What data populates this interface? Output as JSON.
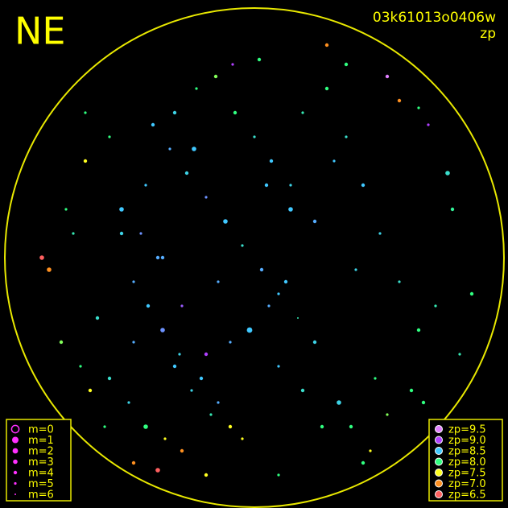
{
  "header": {
    "title": "NE",
    "id": "03k61013o0406w",
    "mode": "zp"
  },
  "magnitude_legend": [
    {
      "value": 0,
      "label": "m=0"
    },
    {
      "value": 1,
      "label": "m=1"
    },
    {
      "value": 2,
      "label": "m=2"
    },
    {
      "value": 3,
      "label": "m=3"
    },
    {
      "value": 4,
      "label": "m=4"
    },
    {
      "value": 5,
      "label": "m=5"
    },
    {
      "value": 6,
      "label": "m=6"
    }
  ],
  "zp_legend": [
    {
      "value": 9.5,
      "label": "zp=9.5",
      "color": "#e080ff"
    },
    {
      "value": 9.0,
      "label": "zp=9.0",
      "color": "#b040ff"
    },
    {
      "value": 8.5,
      "label": "zp=8.5",
      "color": "#40c8ff"
    },
    {
      "value": 8.0,
      "label": "zp=8.0",
      "color": "#30ff80"
    },
    {
      "value": 7.5,
      "label": "zp=7.5",
      "color": "#ffff20"
    },
    {
      "value": 7.0,
      "label": "zp=7.0",
      "color": "#ff9020"
    },
    {
      "value": 6.5,
      "label": "zp=6.5",
      "color": "#ff6060"
    }
  ],
  "points": {
    "x": [
      -0.42,
      -0.35,
      -0.28,
      -0.2,
      -0.12,
      -0.05,
      0.03,
      0.1,
      0.18,
      0.25,
      -0.5,
      -0.44,
      -0.38,
      -0.31,
      -0.22,
      -0.15,
      -0.08,
      0.0,
      0.07,
      0.15,
      -0.55,
      -0.47,
      -0.4,
      -0.33,
      -0.26,
      -0.18,
      -0.1,
      -0.02,
      0.06,
      0.13,
      -0.6,
      -0.52,
      -0.45,
      -0.37,
      -0.3,
      -0.24,
      -0.16,
      -0.09,
      0.02,
      0.2,
      0.3,
      0.38,
      0.45,
      0.52,
      0.6,
      0.68,
      0.75,
      0.82,
      0.35,
      0.5,
      -0.7,
      -0.78,
      -0.85,
      -0.65,
      -0.72,
      -0.8,
      -0.6,
      -0.68,
      -0.75,
      -0.88,
      0.4,
      0.55,
      0.65,
      0.72,
      0.8,
      0.6,
      0.48,
      0.7,
      0.85,
      0.9,
      -0.45,
      -0.38,
      -0.3,
      -0.25,
      -0.55,
      -0.5,
      -0.2,
      0.1,
      0.25,
      0.42,
      0.05,
      -0.1,
      0.2,
      0.33,
      -0.33,
      0.15,
      -0.05,
      0.28,
      -0.15,
      0.38,
      -0.62,
      -0.5,
      -0.4,
      0.55,
      0.68,
      -0.2,
      0.1,
      0.45,
      -0.7,
      0.3
    ],
    "y": [
      -0.55,
      -0.45,
      -0.35,
      -0.25,
      -0.15,
      -0.05,
      0.05,
      0.15,
      0.25,
      0.35,
      0.1,
      0.2,
      0.3,
      0.4,
      0.5,
      0.6,
      -0.6,
      -0.5,
      -0.4,
      -0.3,
      -0.2,
      -0.1,
      0.0,
      0.45,
      0.55,
      0.65,
      0.7,
      0.3,
      0.2,
      0.1,
      0.5,
      0.6,
      0.7,
      0.75,
      0.8,
      -0.7,
      -0.75,
      -0.8,
      -0.82,
      -0.6,
      -0.7,
      -0.5,
      -0.3,
      -0.1,
      0.1,
      0.3,
      0.2,
      -0.2,
      0.6,
      0.5,
      -0.4,
      -0.2,
      0.05,
      0.25,
      0.45,
      0.35,
      -0.5,
      0.55,
      -0.1,
      0.0,
      0.7,
      0.65,
      0.55,
      -0.55,
      -0.35,
      -0.65,
      0.8,
      0.6,
      0.4,
      0.15,
      -0.3,
      0.0,
      0.2,
      -0.45,
      -0.1,
      0.35,
      0.4,
      0.45,
      -0.15,
      0.05,
      -0.3,
      0.35,
      0.55,
      -0.4,
      -0.6,
      -0.2,
      0.75,
      0.7,
      0.1,
      -0.8,
      0.7,
      0.85,
      0.88,
      -0.75,
      -0.62,
      0.9,
      0.9,
      0.85,
      -0.6,
      -0.88
    ],
    "zp": [
      8.5,
      8.6,
      8.4,
      8.7,
      8.5,
      8.3,
      8.6,
      8.5,
      8.2,
      8.4,
      8.6,
      8.5,
      8.7,
      8.4,
      8.5,
      8.6,
      8.0,
      8.3,
      8.5,
      8.4,
      8.5,
      8.7,
      8.6,
      8.5,
      8.4,
      8.2,
      7.5,
      8.5,
      8.6,
      8.5,
      8.3,
      8.4,
      8.0,
      7.5,
      7.0,
      8.0,
      7.8,
      9.0,
      8.0,
      8.2,
      8.0,
      8.3,
      8.5,
      8.4,
      8.3,
      8.0,
      8.2,
      8.1,
      8.4,
      8.0,
      7.5,
      8.0,
      7.0,
      8.3,
      8.0,
      7.8,
      8.0,
      7.5,
      8.2,
      6.5,
      8.0,
      7.8,
      8.0,
      9.0,
      8.3,
      7.0,
      7.5,
      8.0,
      8.2,
      8.0,
      8.5,
      8.6,
      8.9,
      8.5,
      8.4,
      8.6,
      9.0,
      8.5,
      8.6,
      8.4,
      8.5,
      8.6,
      8.3,
      8.5,
      8.4,
      8.5,
      7.5,
      8.0,
      8.6,
      8.0,
      8.0,
      7.0,
      6.5,
      9.5,
      8.0,
      7.5,
      8.0,
      8.0,
      8.0,
      7.0
    ],
    "m": [
      4,
      5,
      4,
      5,
      3,
      5,
      4,
      5,
      6,
      4,
      5,
      4,
      3,
      5,
      4,
      5,
      4,
      5,
      4,
      5,
      3,
      5,
      4,
      4,
      5,
      5,
      4,
      2,
      5,
      4,
      4,
      5,
      3,
      5,
      4,
      5,
      4,
      5,
      4,
      5,
      4,
      5,
      4,
      5,
      5,
      4,
      5,
      4,
      3,
      5,
      4,
      5,
      3,
      4,
      5,
      4,
      5,
      4,
      5,
      3,
      4,
      5,
      4,
      5,
      3,
      4,
      5,
      4,
      5,
      4,
      5,
      4,
      5,
      3,
      4,
      5,
      4,
      5,
      4,
      5,
      4,
      5,
      4,
      5,
      4,
      3,
      5,
      4,
      5,
      4,
      5,
      4,
      3,
      4,
      5,
      4,
      5,
      4,
      5,
      4
    ]
  }
}
